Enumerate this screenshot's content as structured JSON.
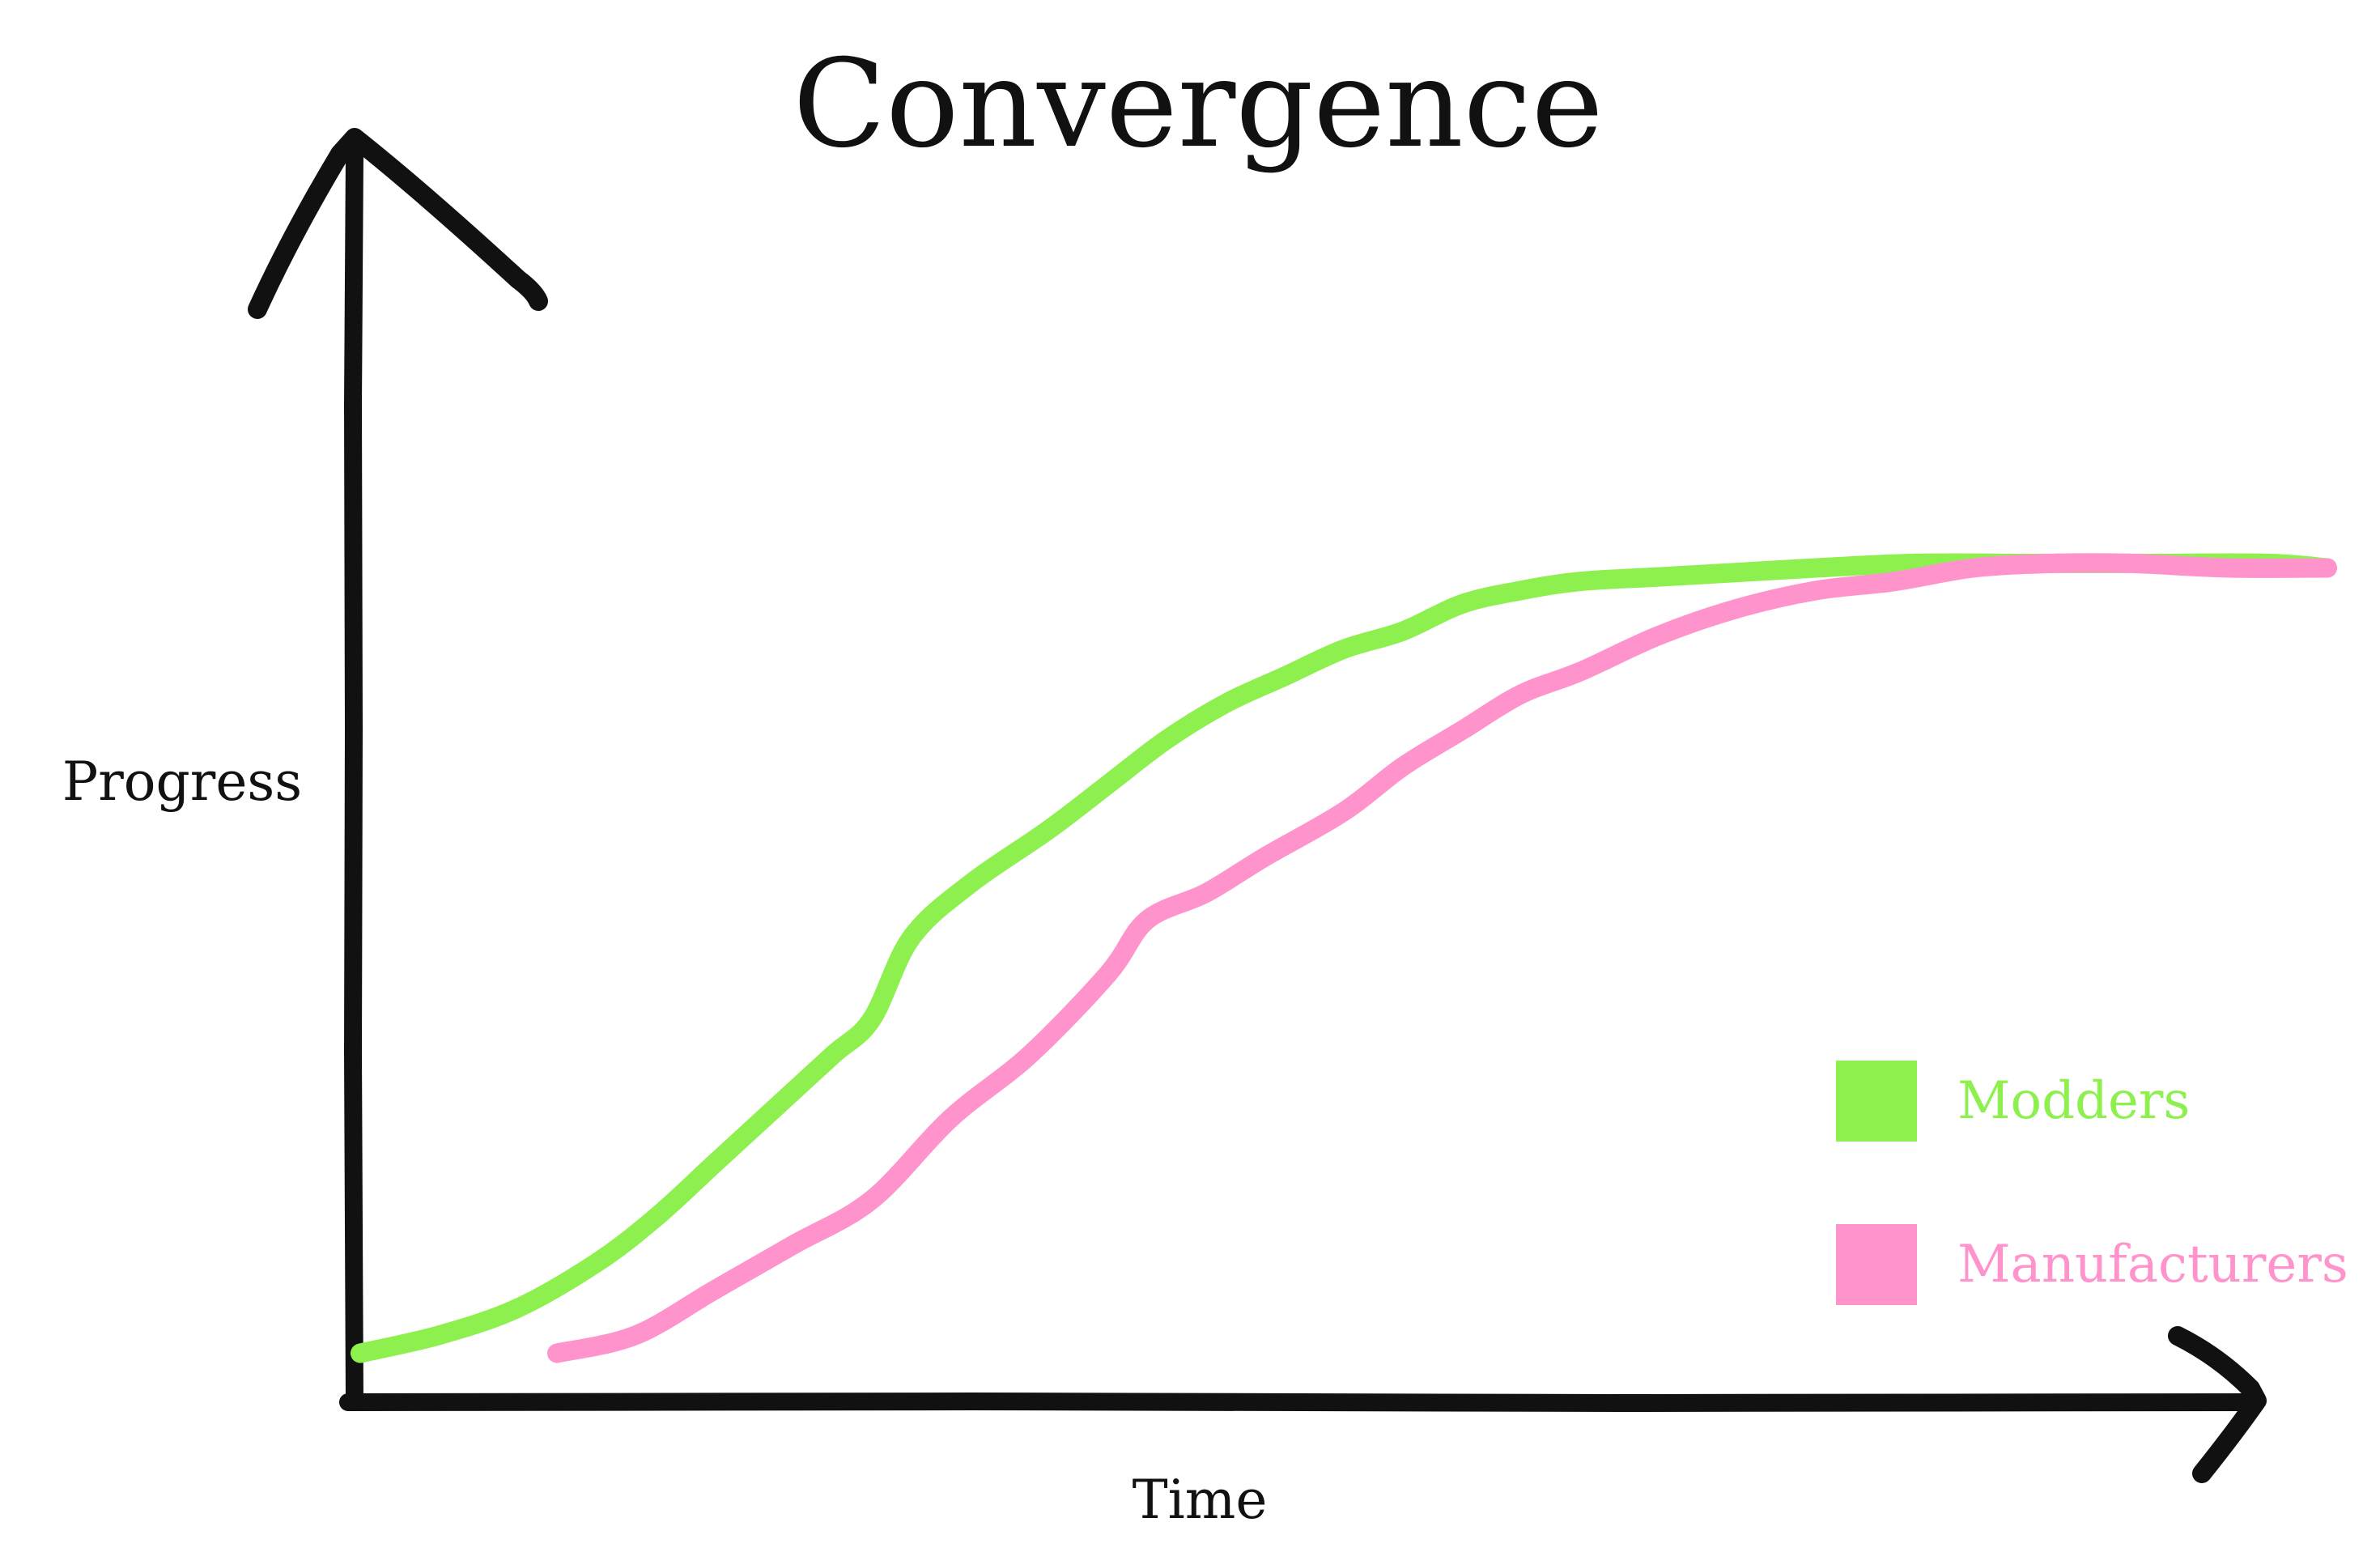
{
  "chart_data": {
    "type": "line",
    "title": "Convergence",
    "xlabel": "Time",
    "ylabel": "Progress",
    "xlim": [
      0,
      100
    ],
    "ylim": [
      0,
      100
    ],
    "axes_style": "hand-drawn arrows, no ticks",
    "grid": false,
    "legend_position": "bottom-right",
    "axis_color": "#111111",
    "series": [
      {
        "name": "Modders",
        "color": "#8ef04e",
        "x": [
          0,
          4,
          8,
          12,
          15,
          18,
          21,
          24,
          26,
          28,
          31,
          35,
          38,
          41,
          44,
          47,
          50,
          53,
          56,
          59,
          62,
          66,
          70,
          74,
          79,
          85,
          91,
          97,
          100
        ],
        "y": [
          3,
          5,
          8,
          13,
          18,
          24,
          30,
          36,
          40,
          49,
          55,
          61,
          66,
          71,
          75,
          78,
          81,
          83,
          86,
          87.5,
          88.5,
          89,
          89.5,
          90,
          90.5,
          90.5,
          90.5,
          90.5,
          90
        ],
        "label_color": "#8ef04e"
      },
      {
        "name": "Manufacturers",
        "color": "#ff93cc",
        "x": [
          10,
          14,
          18,
          22,
          26,
          30,
          34,
          38,
          40,
          43,
          46,
          50,
          53,
          56,
          59,
          62,
          66,
          70,
          74,
          78,
          82,
          86,
          90,
          95,
          100
        ],
        "y": [
          3,
          5,
          10,
          15,
          20,
          29,
          36,
          45,
          51,
          54,
          58,
          63,
          68,
          72,
          76,
          78.5,
          82.5,
          85.5,
          87.5,
          88.5,
          90,
          90.5,
          90.5,
          90,
          90
        ],
        "label_color": "#ff93cc"
      }
    ]
  }
}
